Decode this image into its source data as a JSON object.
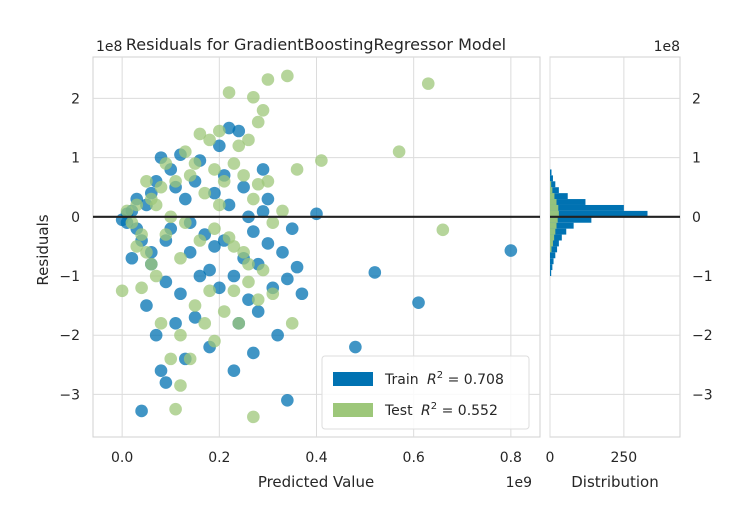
{
  "chart_data": {
    "type": "scatter",
    "title": "Residuals for GradientBoostingRegressor Model",
    "xlabel": "Predicted Value",
    "ylabel": "Residuals",
    "x_offset_label": "1e9",
    "y_offset_label": "1e8",
    "xlim": [
      -0.06,
      0.86
    ],
    "ylim": [
      -3.72,
      2.7
    ],
    "x_ticks": [
      0.0,
      0.2,
      0.4,
      0.6,
      0.8
    ],
    "x_tick_labels": [
      "0.0",
      "0.2",
      "0.4",
      "0.6",
      "0.8"
    ],
    "y_ticks": [
      -3,
      -2,
      -1,
      0,
      1,
      2
    ],
    "y_tick_labels": [
      "−3",
      "−2",
      "−1",
      "0",
      "1",
      "2"
    ],
    "zero_line": 0,
    "grid": true,
    "legend_position": "lower-right",
    "series": [
      {
        "name": "Train",
        "r2": "0.708",
        "legend_label": "Train",
        "color": "#0072b2",
        "points": [
          [
            0.52,
            -0.94
          ],
          [
            0.61,
            -1.45
          ],
          [
            0.8,
            -0.57
          ],
          [
            0.48,
            -2.2
          ],
          [
            0.34,
            -3.1
          ],
          [
            0.04,
            -3.28
          ],
          [
            0.4,
            0.05
          ],
          [
            0.29,
            0.09
          ],
          [
            0.36,
            -0.85
          ],
          [
            0.37,
            -1.3
          ],
          [
            0.27,
            -2.3
          ],
          [
            0.34,
            -1.05
          ],
          [
            0.3,
            -0.45
          ],
          [
            0.22,
            1.5
          ],
          [
            0.24,
            1.45
          ],
          [
            0.29,
            0.8
          ],
          [
            0.25,
            0.5
          ],
          [
            0.3,
            0.3
          ],
          [
            0.08,
            -2.6
          ],
          [
            0.07,
            -2.0
          ],
          [
            0.11,
            -1.8
          ],
          [
            0.15,
            -1.7
          ],
          [
            0.2,
            -1.2
          ],
          [
            0.23,
            -1.0
          ],
          [
            0.25,
            -0.7
          ],
          [
            0.21,
            -0.4
          ],
          [
            0.18,
            -0.9
          ],
          [
            0.12,
            -1.3
          ],
          [
            0.09,
            -1.1
          ],
          [
            0.06,
            -0.8
          ],
          [
            0.14,
            -0.6
          ],
          [
            0.27,
            -0.25
          ],
          [
            0.19,
            0.4
          ],
          [
            0.15,
            0.6
          ],
          [
            0.1,
            0.8
          ],
          [
            0.05,
            0.2
          ],
          [
            0.03,
            -0.2
          ],
          [
            0.02,
            0.1
          ],
          [
            0.01,
            -0.1
          ],
          [
            0.06,
            0.4
          ],
          [
            0.09,
            -0.4
          ],
          [
            0.13,
            0.3
          ],
          [
            0.17,
            -0.3
          ],
          [
            0.22,
            0.2
          ],
          [
            0.26,
            -1.4
          ],
          [
            0.28,
            -1.6
          ],
          [
            0.32,
            -2.0
          ],
          [
            0.18,
            -2.2
          ],
          [
            0.24,
            -1.8
          ],
          [
            0.16,
            0.95
          ],
          [
            0.12,
            1.05
          ],
          [
            0.2,
            1.2
          ],
          [
            0.08,
            1.0
          ],
          [
            0.05,
            -1.5
          ],
          [
            0.1,
            -0.2
          ],
          [
            0.03,
            0.3
          ],
          [
            0.07,
            0.6
          ],
          [
            0.14,
            -0.1
          ],
          [
            0.04,
            -0.4
          ],
          [
            0.06,
            -0.6
          ],
          [
            0.02,
            -0.7
          ],
          [
            0.16,
            -1.0
          ],
          [
            0.21,
            0.7
          ],
          [
            0.33,
            -0.6
          ],
          [
            0.35,
            -0.2
          ],
          [
            0.31,
            -1.2
          ],
          [
            0.26,
            0.0
          ],
          [
            0.28,
            -0.8
          ],
          [
            0.13,
            -2.4
          ],
          [
            0.09,
            -2.8
          ],
          [
            0.23,
            -2.6
          ],
          [
            0.11,
            0.5
          ],
          [
            0.19,
            -0.5
          ],
          [
            0.01,
            0.05
          ],
          [
            0.0,
            -0.05
          ]
        ]
      },
      {
        "name": "Test",
        "r2": "0.552",
        "legend_label": "Test",
        "color": "#9dc77a",
        "points": [
          [
            0.34,
            2.38
          ],
          [
            0.3,
            2.32
          ],
          [
            0.27,
            2.02
          ],
          [
            0.22,
            2.1
          ],
          [
            0.29,
            1.8
          ],
          [
            0.28,
            1.6
          ],
          [
            0.26,
            1.3
          ],
          [
            0.24,
            1.2
          ],
          [
            0.23,
            0.9
          ],
          [
            0.25,
            0.7
          ],
          [
            0.28,
            0.55
          ],
          [
            0.36,
            0.8
          ],
          [
            0.41,
            0.95
          ],
          [
            0.57,
            1.1
          ],
          [
            0.63,
            2.25
          ],
          [
            0.66,
            -0.22
          ],
          [
            0.27,
            -3.38
          ],
          [
            0.11,
            -3.25
          ],
          [
            0.12,
            -2.85
          ],
          [
            0.1,
            -2.4
          ],
          [
            0.14,
            -2.4
          ],
          [
            0.17,
            -1.8
          ],
          [
            0.21,
            -1.6
          ],
          [
            0.24,
            -1.8
          ],
          [
            0.35,
            -1.8
          ],
          [
            0.31,
            -1.3
          ],
          [
            0.29,
            -0.9
          ],
          [
            0.26,
            -0.8
          ],
          [
            0.23,
            -0.5
          ],
          [
            0.18,
            -1.25
          ],
          [
            0.0,
            -1.25
          ],
          [
            0.04,
            -1.2
          ],
          [
            0.07,
            -1.0
          ],
          [
            0.05,
            -0.6
          ],
          [
            0.09,
            -0.3
          ],
          [
            0.12,
            -0.7
          ],
          [
            0.16,
            -0.4
          ],
          [
            0.19,
            -0.2
          ],
          [
            0.2,
            0.2
          ],
          [
            0.17,
            0.4
          ],
          [
            0.15,
            0.9
          ],
          [
            0.13,
            1.1
          ],
          [
            0.18,
            1.3
          ],
          [
            0.2,
            1.45
          ],
          [
            0.16,
            1.4
          ],
          [
            0.11,
            0.6
          ],
          [
            0.08,
            0.5
          ],
          [
            0.06,
            0.3
          ],
          [
            0.03,
            0.2
          ],
          [
            0.02,
            -0.1
          ],
          [
            0.01,
            0.1
          ],
          [
            0.04,
            -0.3
          ],
          [
            0.07,
            0.2
          ],
          [
            0.1,
            0.0
          ],
          [
            0.13,
            -0.1
          ],
          [
            0.22,
            -0.35
          ],
          [
            0.25,
            -0.6
          ],
          [
            0.31,
            -0.1
          ],
          [
            0.33,
            0.1
          ],
          [
            0.3,
            0.6
          ],
          [
            0.27,
            0.3
          ],
          [
            0.21,
            0.6
          ],
          [
            0.19,
            0.8
          ],
          [
            0.14,
            0.7
          ],
          [
            0.09,
            0.9
          ],
          [
            0.26,
            -1.1
          ],
          [
            0.23,
            -1.25
          ],
          [
            0.28,
            -1.4
          ],
          [
            0.15,
            -1.5
          ],
          [
            0.08,
            -1.8
          ],
          [
            0.12,
            -2.0
          ],
          [
            0.19,
            -2.1
          ],
          [
            0.05,
            0.6
          ],
          [
            0.03,
            -0.5
          ],
          [
            0.06,
            -0.8
          ]
        ]
      }
    ],
    "distribution": {
      "xlabel": "Distribution",
      "xlim": [
        0,
        440
      ],
      "x_ticks": [
        0,
        250
      ],
      "x_tick_labels": [
        "0",
        "250"
      ],
      "offset_label": "1e8",
      "bin_width": 0.1,
      "train_counts": [
        [
          -1.0,
          4
        ],
        [
          -0.9,
          8
        ],
        [
          -0.8,
          12
        ],
        [
          -0.7,
          18
        ],
        [
          -0.6,
          24
        ],
        [
          -0.5,
          30
        ],
        [
          -0.4,
          40
        ],
        [
          -0.3,
          55
        ],
        [
          -0.2,
          80
        ],
        [
          -0.1,
          140
        ],
        [
          0.0,
          330
        ],
        [
          0.1,
          250
        ],
        [
          0.2,
          120
        ],
        [
          0.3,
          60
        ],
        [
          0.4,
          30
        ],
        [
          0.5,
          18
        ],
        [
          0.6,
          10
        ],
        [
          0.7,
          5
        ]
      ],
      "test_counts": [
        [
          -0.6,
          5
        ],
        [
          -0.5,
          10
        ],
        [
          -0.4,
          14
        ],
        [
          -0.3,
          18
        ],
        [
          -0.2,
          22
        ],
        [
          -0.1,
          26
        ],
        [
          0.0,
          30
        ],
        [
          0.1,
          28
        ],
        [
          0.2,
          22
        ],
        [
          0.3,
          15
        ],
        [
          0.4,
          8
        ],
        [
          0.5,
          4
        ]
      ]
    }
  }
}
